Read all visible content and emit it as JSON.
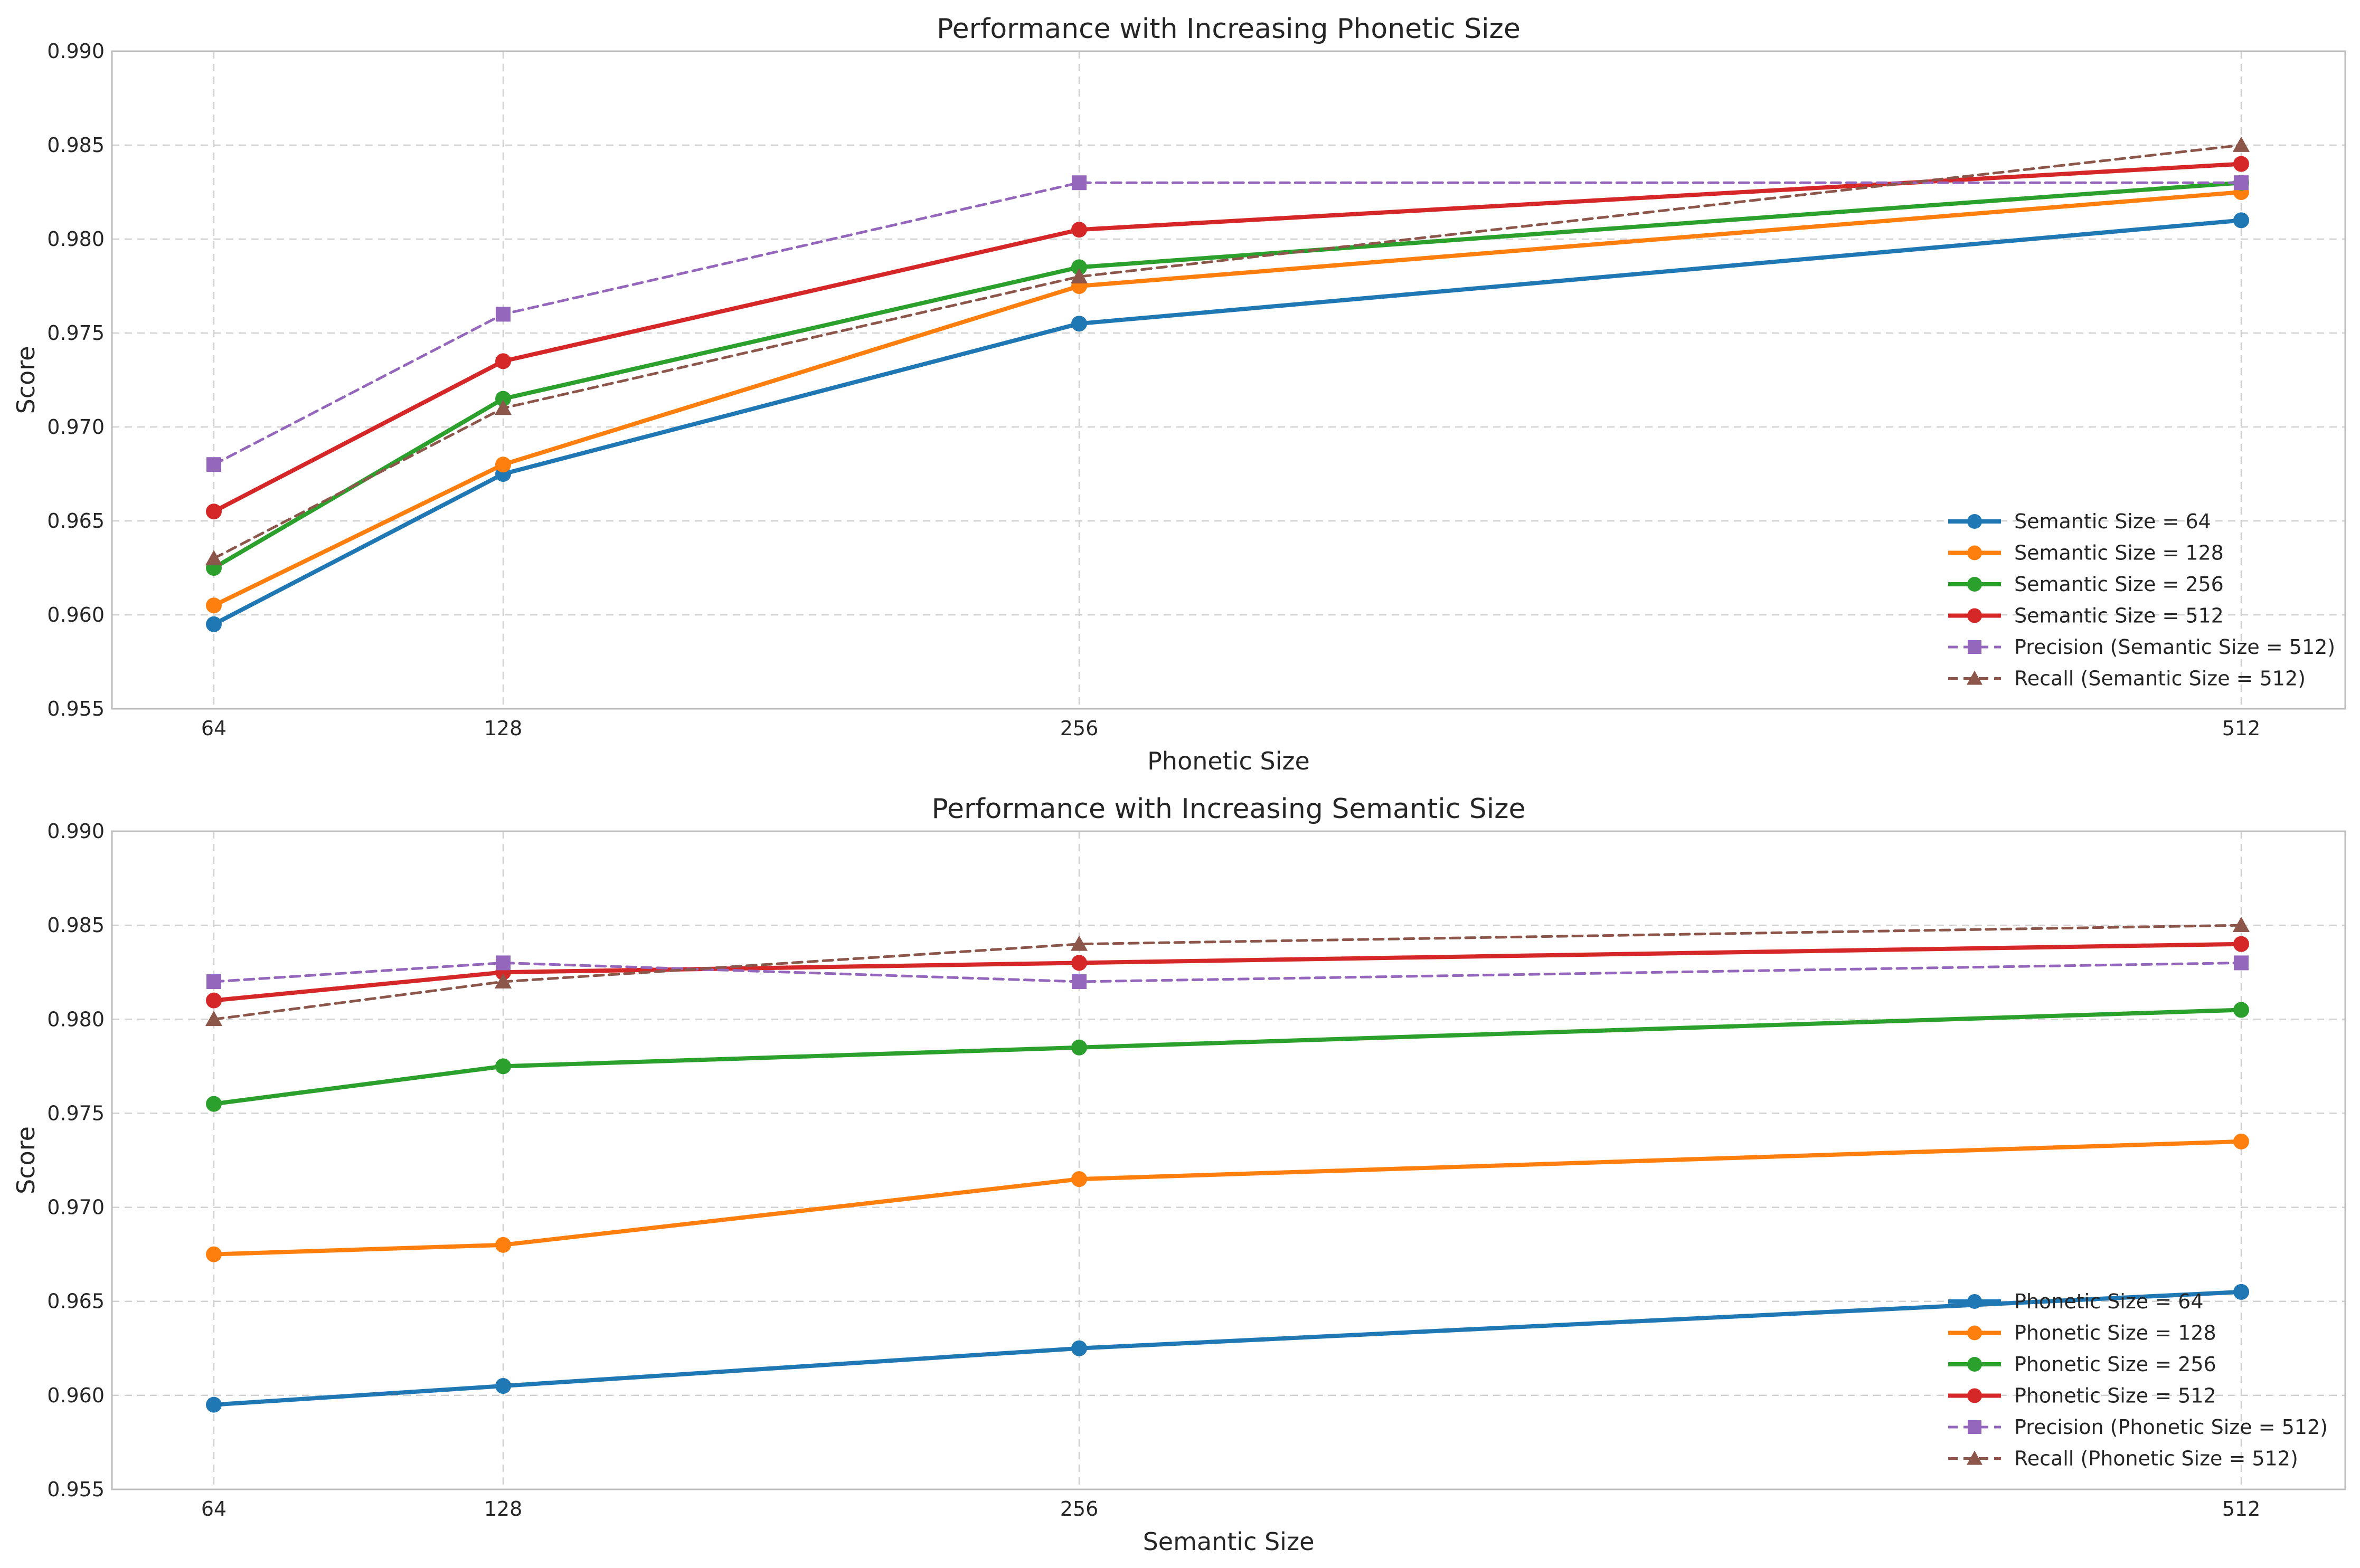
{
  "chart_data": [
    {
      "type": "line",
      "title": "Performance with Increasing Phonetic Size",
      "xlabel": "Phonetic Size",
      "ylabel": "Score",
      "x": [
        64,
        128,
        256,
        512
      ],
      "x_tick_labels": [
        "64",
        "128",
        "256",
        "512"
      ],
      "ylim": [
        0.955,
        0.99
      ],
      "y_ticks": [
        0.955,
        0.96,
        0.965,
        0.97,
        0.975,
        0.98,
        0.985,
        0.99
      ],
      "y_tick_labels": [
        "0.955",
        "0.960",
        "0.965",
        "0.970",
        "0.975",
        "0.980",
        "0.985",
        "0.990"
      ],
      "grid": true,
      "legend_position": "lower-right",
      "series": [
        {
          "name": "Semantic Size = 64",
          "values": [
            0.9595,
            0.9675,
            0.9755,
            0.981
          ],
          "color": "#1f77b4",
          "style": "solid",
          "marker": "circle"
        },
        {
          "name": "Semantic Size = 128",
          "values": [
            0.9605,
            0.968,
            0.9775,
            0.9825
          ],
          "color": "#ff7f0e",
          "style": "solid",
          "marker": "circle"
        },
        {
          "name": "Semantic Size = 256",
          "values": [
            0.9625,
            0.9715,
            0.9785,
            0.983
          ],
          "color": "#2ca02c",
          "style": "solid",
          "marker": "circle"
        },
        {
          "name": "Semantic Size = 512",
          "values": [
            0.9655,
            0.9735,
            0.9805,
            0.984
          ],
          "color": "#d62728",
          "style": "solid",
          "marker": "circle"
        },
        {
          "name": "Precision (Semantic Size = 512)",
          "values": [
            0.968,
            0.976,
            0.983,
            0.983
          ],
          "color": "#9467bd",
          "style": "dashed",
          "marker": "square"
        },
        {
          "name": "Recall (Semantic Size = 512)",
          "values": [
            0.963,
            0.971,
            0.978,
            0.985
          ],
          "color": "#8c564b",
          "style": "dashed",
          "marker": "triangle"
        }
      ]
    },
    {
      "type": "line",
      "title": "Performance with Increasing Semantic Size",
      "xlabel": "Semantic Size",
      "ylabel": "Score",
      "x": [
        64,
        128,
        256,
        512
      ],
      "x_tick_labels": [
        "64",
        "128",
        "256",
        "512"
      ],
      "ylim": [
        0.955,
        0.99
      ],
      "y_ticks": [
        0.955,
        0.96,
        0.965,
        0.97,
        0.975,
        0.98,
        0.985,
        0.99
      ],
      "y_tick_labels": [
        "0.955",
        "0.960",
        "0.965",
        "0.970",
        "0.975",
        "0.980",
        "0.985",
        "0.990"
      ],
      "grid": true,
      "legend_position": "lower-right",
      "series": [
        {
          "name": "Phonetic Size = 64",
          "values": [
            0.9595,
            0.9605,
            0.9625,
            0.9655
          ],
          "color": "#1f77b4",
          "style": "solid",
          "marker": "circle"
        },
        {
          "name": "Phonetic Size = 128",
          "values": [
            0.9675,
            0.968,
            0.9715,
            0.9735
          ],
          "color": "#ff7f0e",
          "style": "solid",
          "marker": "circle"
        },
        {
          "name": "Phonetic Size = 256",
          "values": [
            0.9755,
            0.9775,
            0.9785,
            0.9805
          ],
          "color": "#2ca02c",
          "style": "solid",
          "marker": "circle"
        },
        {
          "name": "Phonetic Size = 512",
          "values": [
            0.981,
            0.9825,
            0.983,
            0.984
          ],
          "color": "#d62728",
          "style": "solid",
          "marker": "circle"
        },
        {
          "name": "Precision (Phonetic Size = 512)",
          "values": [
            0.982,
            0.983,
            0.982,
            0.983
          ],
          "color": "#9467bd",
          "style": "dashed",
          "marker": "square"
        },
        {
          "name": "Recall (Phonetic Size = 512)",
          "values": [
            0.98,
            0.982,
            0.984,
            0.985
          ],
          "color": "#8c564b",
          "style": "dashed",
          "marker": "triangle"
        }
      ]
    }
  ]
}
